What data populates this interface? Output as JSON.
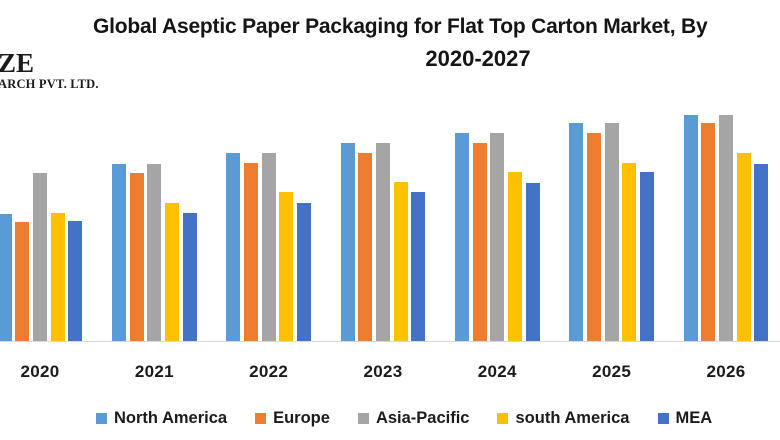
{
  "logo": {
    "line1": "ZE",
    "line2": "ARCH PVT. LTD."
  },
  "title": {
    "line1": "Global Aseptic Paper Packaging for Flat Top Carton Market, By",
    "line2": "2020-2027"
  },
  "colors": {
    "north_america": "#5B9BD5",
    "europe": "#ED7D31",
    "asia_pacific": "#A5A5A5",
    "south_america": "#FFC000",
    "mea": "#4472C4",
    "axis_line": "#D9D9D9",
    "text": "#1B1B1B",
    "background": "#FFFFFF"
  },
  "chart_data": {
    "type": "bar",
    "title": "Global Aseptic Paper Packaging for Flat Top Carton Market, By 2020-2027",
    "categories": [
      "2020",
      "2021",
      "2022",
      "2023",
      "2024",
      "2025",
      "2026"
    ],
    "series": [
      {
        "name": "North America",
        "color": "#5B9BD5",
        "values": [
          127,
          177,
          188,
          198,
          208,
          218,
          226
        ]
      },
      {
        "name": "Europe",
        "color": "#ED7D31",
        "values": [
          119,
          168,
          178,
          188,
          198,
          208,
          218
        ]
      },
      {
        "name": "Asia-Pacific",
        "color": "#A5A5A5",
        "values": [
          168,
          177,
          188,
          198,
          208,
          218,
          226
        ]
      },
      {
        "name": "south America",
        "color": "#FFC000",
        "values": [
          128,
          138,
          149,
          159,
          169,
          178,
          188
        ]
      },
      {
        "name": "MEA",
        "color": "#4472C4",
        "values": [
          120,
          128,
          138,
          149,
          158,
          169,
          177
        ]
      }
    ],
    "xlabel": "",
    "ylabel": "",
    "value_units": "relative height (no y-axis values shown in image)",
    "ylim": [
      0,
      245
    ],
    "grid": false,
    "y_axis_visible": false,
    "legend_position": "bottom",
    "notes": "Leftmost 2020 North America bar and the 2027 category group are cropped by the image edges; company logo fragment cropped at top-left."
  }
}
